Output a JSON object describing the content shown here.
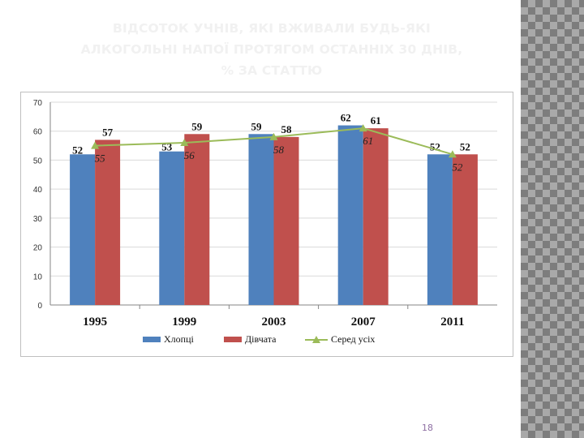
{
  "title": {
    "line1": "ВІДСОТОК УЧНІВ, ЯКІ ВЖИВАЛИ БУДЬ-ЯКІ",
    "line2": "АЛКОГОЛЬНІ НАПОЇ ПРОТЯГОМ ОСТАННІХ 30 ДНІВ,",
    "line3": "% ЗА СТАТТЮ"
  },
  "page_number": "18",
  "chart_data": {
    "type": "bar",
    "categories": [
      "1995",
      "1999",
      "2003",
      "2007",
      "2011"
    ],
    "series": [
      {
        "name": "Хлопці",
        "kind": "bar",
        "color": "#4f81bd",
        "values": [
          52,
          53,
          59,
          62,
          52
        ]
      },
      {
        "name": "Дівчата",
        "kind": "bar",
        "color": "#c0504d",
        "values": [
          57,
          59,
          58,
          61,
          52
        ]
      },
      {
        "name": "Серед усіх",
        "kind": "line",
        "color": "#9bbb59",
        "values": [
          55,
          56,
          58,
          61,
          52
        ]
      }
    ],
    "ylim": [
      0,
      70
    ],
    "yticks": [
      0,
      10,
      20,
      30,
      40,
      50,
      60,
      70
    ],
    "grid": true,
    "legend": "bottom"
  }
}
